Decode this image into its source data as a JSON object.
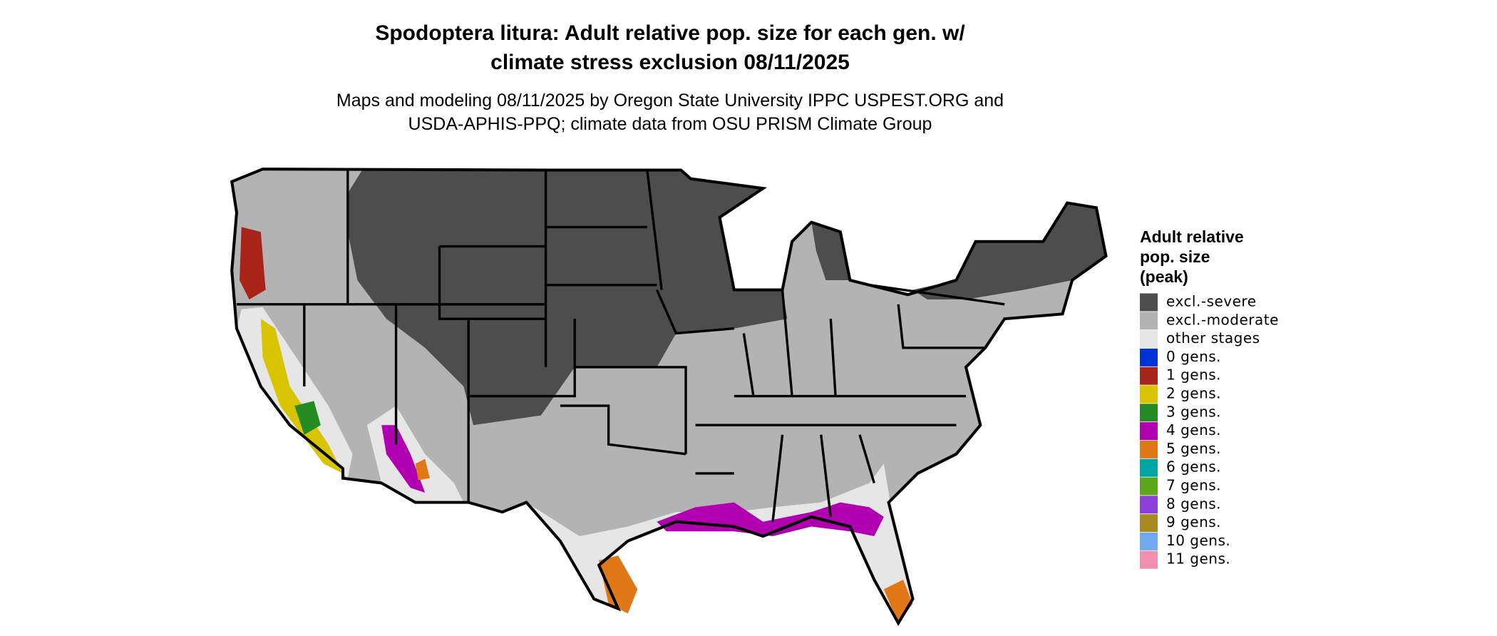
{
  "header": {
    "title_lines": [
      "Spodoptera litura: Adult relative pop. size for each gen. w/",
      "climate stress exclusion 08/11/2025"
    ],
    "subtitle_lines": [
      "Maps and modeling 08/11/2025 by Oregon State University IPPC USPEST.ORG and",
      "USDA-APHIS-PPQ; climate data from OSU PRISM Climate Group"
    ]
  },
  "legend": {
    "title_lines": [
      "Adult relative",
      "pop. size",
      "(peak)"
    ],
    "items": [
      {
        "label": "excl.-severe",
        "color": "#4d4d4d"
      },
      {
        "label": "excl.-moderate",
        "color": "#b3b3b3"
      },
      {
        "label": "other stages",
        "color": "#e6e6e6"
      },
      {
        "label": "0 gens.",
        "color": "#0033d6"
      },
      {
        "label": "1 gens.",
        "color": "#a82418"
      },
      {
        "label": "2 gens.",
        "color": "#d8c400"
      },
      {
        "label": "3 gens.",
        "color": "#238b22"
      },
      {
        "label": "4 gens.",
        "color": "#b000b0"
      },
      {
        "label": "5 gens.",
        "color": "#e07818"
      },
      {
        "label": "6 gens.",
        "color": "#00a4a4"
      },
      {
        "label": "7 gens.",
        "color": "#5aa818"
      },
      {
        "label": "8 gens.",
        "color": "#8a40d8"
      },
      {
        "label": "9 gens.",
        "color": "#a88a20"
      },
      {
        "label": "10 gens.",
        "color": "#70a8f0"
      },
      {
        "label": "11 gens.",
        "color": "#f090b0"
      }
    ]
  }
}
